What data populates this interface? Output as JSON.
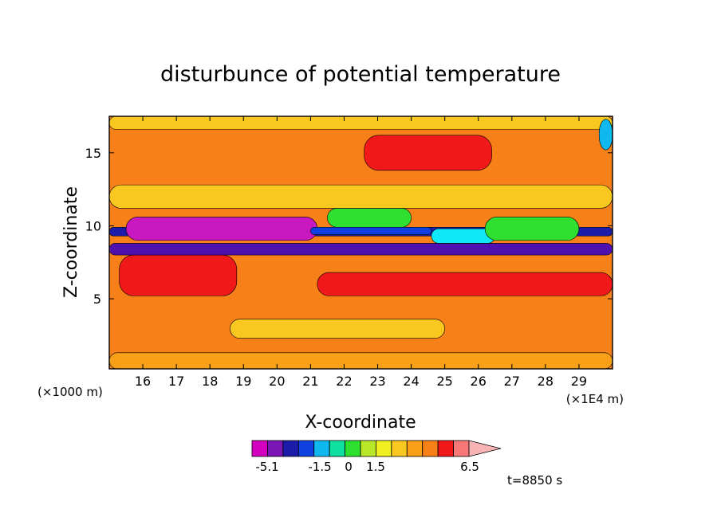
{
  "chart_data": {
    "type": "heatmap",
    "title": "disturbunce of potential temperature",
    "xlabel": "X-coordinate",
    "ylabel": "Z-coordinate",
    "x_unit": "(×1E4 m)",
    "y_unit": "(×1000 m)",
    "xlim": [
      15.0,
      30.0
    ],
    "ylim": [
      0.2,
      17.5
    ],
    "x_ticks": [
      "16",
      "17",
      "18",
      "19",
      "20",
      "21",
      "22",
      "23",
      "24",
      "25",
      "26",
      "27",
      "28",
      "29"
    ],
    "y_ticks": [
      "5",
      "10",
      "15"
    ],
    "time_label": "t=8850 s",
    "colorbar": {
      "tick_labels": [
        "-5.1",
        "-1.5",
        "0",
        "1.5",
        "6.5"
      ],
      "colors": [
        "#d400c0",
        "#7a16b4",
        "#1c1ca8",
        "#1040e0",
        "#10b8f0",
        "#10e0a0",
        "#30e030",
        "#b8e628",
        "#f0f020",
        "#f8c820",
        "#f8a018",
        "#f88018",
        "#f01818",
        "#f87878",
        "#f8b4b4"
      ]
    },
    "regions": [
      {
        "level": 2,
        "x": [
          15.0,
          30.0
        ],
        "z": [
          0.2,
          1.3
        ]
      },
      {
        "level": 0,
        "x": [
          15.3,
          18.8
        ],
        "z": [
          5.2,
          8.0
        ]
      },
      {
        "level": 1,
        "x": [
          21.2,
          30.0
        ],
        "z": [
          5.2,
          6.8
        ]
      },
      {
        "level": 3,
        "x": [
          18.6,
          25.0
        ],
        "z": [
          2.3,
          3.6
        ]
      },
      {
        "level": 4,
        "x": [
          15.0,
          30.0
        ],
        "z": [
          8.0,
          8.8
        ]
      },
      {
        "level": 5,
        "x": [
          15.0,
          30.0
        ],
        "z": [
          9.3,
          9.9
        ]
      },
      {
        "level": 6,
        "x": [
          15.5,
          21.2
        ],
        "z": [
          9.0,
          10.6
        ]
      },
      {
        "level": 7,
        "x": [
          21.0,
          24.6
        ],
        "z": [
          9.4,
          9.9
        ]
      },
      {
        "level": 8,
        "x": [
          24.6,
          26.5
        ],
        "z": [
          8.8,
          9.8
        ]
      },
      {
        "level": 9,
        "x": [
          21.5,
          24.0
        ],
        "z": [
          9.9,
          11.2
        ]
      },
      {
        "level": 9,
        "x": [
          26.2,
          29.0
        ],
        "z": [
          9.0,
          10.6
        ]
      },
      {
        "level": 3,
        "x": [
          15.0,
          30.0
        ],
        "z": [
          11.2,
          12.8
        ]
      },
      {
        "level": 3,
        "x": [
          15.0,
          30.0
        ],
        "z": [
          16.6,
          17.5
        ]
      },
      {
        "level": 0,
        "x": [
          22.6,
          26.4
        ],
        "z": [
          13.8,
          16.2
        ]
      },
      {
        "level": 10,
        "x": [
          29.6,
          30.0
        ],
        "z": [
          15.2,
          17.3
        ]
      }
    ]
  }
}
